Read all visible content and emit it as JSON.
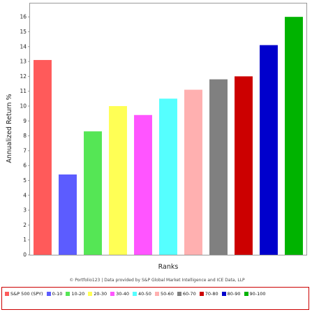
{
  "chart_data": {
    "type": "bar",
    "categories": [
      "S&P 500 (SPY)",
      "0-10",
      "10-20",
      "20-30",
      "30-40",
      "40-50",
      "50-60",
      "60-70",
      "70-80",
      "80-90",
      "90-100"
    ],
    "values": [
      13.1,
      5.4,
      8.3,
      10.0,
      9.4,
      10.5,
      11.1,
      11.8,
      12.0,
      14.1,
      16.0
    ],
    "colors": [
      "#ff5a5a",
      "#5c5cff",
      "#55e655",
      "#ffff55",
      "#ff55ff",
      "#55ffff",
      "#ffb0b0",
      "#808080",
      "#cc0000",
      "#0000cc",
      "#00b300"
    ],
    "title": "",
    "xlabel": "Ranks",
    "ylabel": "Annualized Return %",
    "ylim": [
      0,
      16.9
    ],
    "yticks": [
      0,
      1,
      2,
      3,
      4,
      5,
      6,
      7,
      8,
      9,
      10,
      11,
      12,
      13,
      14,
      15,
      16
    ],
    "grid": false,
    "legend_position": "bottom"
  },
  "credit": "© Portfolio123 | Data provided by S&P Global Market Intelligence and ICE Data, LLP"
}
